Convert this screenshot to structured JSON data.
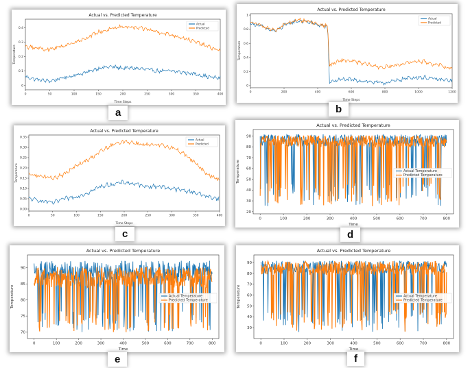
{
  "figure": {
    "labels": [
      "a",
      "b",
      "c",
      "d",
      "e",
      "f"
    ]
  },
  "colors": {
    "actual": "#1f77b4",
    "predicted": "#ff7f0e"
  },
  "chart_data": [
    {
      "type": "line",
      "panel": "a",
      "title": "Actual vs. Predicted Temperature",
      "xlabel": "Time Steps",
      "ylabel": "Temperature",
      "xlim": [
        0,
        400
      ],
      "ylim": [
        -0.03,
        0.46
      ],
      "xticks": [
        0,
        50,
        100,
        150,
        200,
        250,
        300,
        350,
        400
      ],
      "yticks": [
        0.0,
        0.1,
        0.2,
        0.3,
        0.4
      ],
      "legend_pos": "top-right",
      "series": [
        {
          "name": "Actual",
          "x": [
            0,
            25,
            50,
            75,
            100,
            125,
            150,
            175,
            200,
            225,
            250,
            275,
            300,
            325,
            350,
            375,
            400
          ],
          "values": [
            0.06,
            0.04,
            0.03,
            0.05,
            0.07,
            0.09,
            0.12,
            0.13,
            0.12,
            0.12,
            0.11,
            0.1,
            0.1,
            0.09,
            0.08,
            0.06,
            0.05
          ]
        },
        {
          "name": "Predicted",
          "x": [
            0,
            25,
            50,
            75,
            100,
            125,
            150,
            175,
            200,
            225,
            250,
            275,
            300,
            325,
            350,
            375,
            400
          ],
          "values": [
            0.27,
            0.26,
            0.25,
            0.27,
            0.3,
            0.33,
            0.37,
            0.39,
            0.41,
            0.4,
            0.39,
            0.37,
            0.35,
            0.33,
            0.3,
            0.27,
            0.24
          ]
        }
      ]
    },
    {
      "type": "line",
      "panel": "b",
      "title": "Actual vs. Predicted Temperature",
      "xlabel": "Time Steps",
      "ylabel": "Temperature",
      "xlim": [
        0,
        1200
      ],
      "ylim": [
        -0.03,
        1.02
      ],
      "xticks": [
        0,
        200,
        400,
        600,
        800,
        1000,
        1200
      ],
      "yticks": [
        0.0,
        0.2,
        0.4,
        0.6,
        0.8,
        1.0
      ],
      "legend_pos": "top-right",
      "series": [
        {
          "name": "Actual",
          "x": [
            0,
            50,
            100,
            150,
            200,
            250,
            300,
            350,
            400,
            450,
            460,
            470,
            500,
            550,
            600,
            650,
            700,
            750,
            800,
            850,
            900,
            950,
            1000,
            1050,
            1100,
            1150,
            1200
          ],
          "values": [
            0.88,
            0.86,
            0.8,
            0.77,
            0.85,
            0.9,
            0.92,
            0.9,
            0.86,
            0.84,
            0.8,
            0.05,
            0.07,
            0.09,
            0.08,
            0.07,
            0.06,
            0.04,
            0.04,
            0.06,
            0.09,
            0.11,
            0.12,
            0.11,
            0.09,
            0.08,
            0.07
          ]
        },
        {
          "name": "Predicted",
          "x": [
            0,
            50,
            100,
            150,
            200,
            250,
            300,
            350,
            400,
            450,
            460,
            470,
            500,
            550,
            600,
            650,
            700,
            750,
            800,
            850,
            900,
            950,
            1000,
            1050,
            1100,
            1150,
            1200
          ],
          "values": [
            0.89,
            0.87,
            0.81,
            0.79,
            0.86,
            0.91,
            0.93,
            0.91,
            0.87,
            0.85,
            0.82,
            0.28,
            0.32,
            0.36,
            0.35,
            0.32,
            0.3,
            0.27,
            0.26,
            0.28,
            0.31,
            0.33,
            0.35,
            0.33,
            0.3,
            0.27,
            0.24
          ]
        }
      ]
    },
    {
      "type": "line",
      "panel": "c",
      "title": "Actual vs. Predicted Temperature",
      "xlabel": "Time Steps",
      "ylabel": "Temperature",
      "xlim": [
        0,
        400
      ],
      "ylim": [
        -0.01,
        0.36
      ],
      "xticks": [
        0,
        50,
        100,
        150,
        200,
        250,
        300,
        350,
        400
      ],
      "yticks": [
        0.0,
        0.05,
        0.1,
        0.15,
        0.2,
        0.25,
        0.3,
        0.35
      ],
      "ytick_labels": [
        "0.00",
        "0.05",
        "0.10",
        "0.15",
        "0.20",
        "0.25",
        "0.30",
        "0.35"
      ],
      "legend_pos": "top-right",
      "series": [
        {
          "name": "Actual",
          "x": [
            0,
            25,
            50,
            75,
            100,
            125,
            150,
            175,
            200,
            225,
            250,
            275,
            300,
            325,
            350,
            375,
            400
          ],
          "values": [
            0.05,
            0.04,
            0.03,
            0.05,
            0.06,
            0.08,
            0.11,
            0.12,
            0.13,
            0.12,
            0.11,
            0.11,
            0.1,
            0.09,
            0.08,
            0.06,
            0.05
          ]
        },
        {
          "name": "Predicted",
          "x": [
            0,
            25,
            50,
            75,
            100,
            125,
            150,
            175,
            200,
            225,
            250,
            275,
            300,
            325,
            350,
            375,
            400
          ],
          "values": [
            0.17,
            0.16,
            0.15,
            0.17,
            0.21,
            0.24,
            0.28,
            0.31,
            0.33,
            0.32,
            0.31,
            0.31,
            0.3,
            0.27,
            0.22,
            0.17,
            0.14
          ]
        }
      ]
    },
    {
      "type": "line",
      "panel": "d",
      "title": "Actual vs. Predicted Temperature",
      "xlabel": "Time",
      "ylabel": "Temperature",
      "xlim": [
        -30,
        830
      ],
      "ylim": [
        18,
        96
      ],
      "xticks": [
        0,
        100,
        200,
        300,
        400,
        500,
        600,
        700,
        800
      ],
      "yticks": [
        20,
        30,
        40,
        50,
        60,
        70,
        80,
        90
      ],
      "legend_pos": "center-right",
      "series": [
        {
          "name": "Actual Temperature",
          "typical": 86,
          "range": [
            25,
            93
          ]
        },
        {
          "name": "Predicted Temperature",
          "typical": 85,
          "range": [
            25,
            92
          ]
        }
      ]
    },
    {
      "type": "line",
      "panel": "e",
      "title": "Actual vs. Predicted Temperature",
      "xlabel": "Time",
      "ylabel": "Temperature",
      "xlim": [
        -30,
        830
      ],
      "ylim": [
        68,
        94
      ],
      "xticks": [
        0,
        100,
        200,
        300,
        400,
        500,
        600,
        700,
        800
      ],
      "yticks": [
        70,
        75,
        80,
        85,
        90
      ],
      "legend_pos": "center-right",
      "series": [
        {
          "name": "Actual Temperature",
          "typical": 89,
          "range": [
            70,
            93
          ]
        },
        {
          "name": "Predicted Temperature",
          "typical": 87,
          "range": [
            70,
            91
          ]
        }
      ]
    },
    {
      "type": "line",
      "panel": "f",
      "title": "Actual vs. Predicted Temperature",
      "xlabel": "Time",
      "ylabel": "Temperature",
      "xlim": [
        -30,
        830
      ],
      "ylim": [
        20,
        97
      ],
      "xticks": [
        0,
        100,
        200,
        300,
        400,
        500,
        600,
        700,
        800
      ],
      "yticks": [
        30,
        40,
        50,
        60,
        70,
        80,
        90
      ],
      "legend_pos": "center-right",
      "series": [
        {
          "name": "Actual Temperature",
          "typical": 86,
          "range": [
            26,
            93
          ]
        },
        {
          "name": "Predicted Temperature",
          "typical": 85,
          "range": [
            26,
            93
          ]
        }
      ]
    }
  ]
}
